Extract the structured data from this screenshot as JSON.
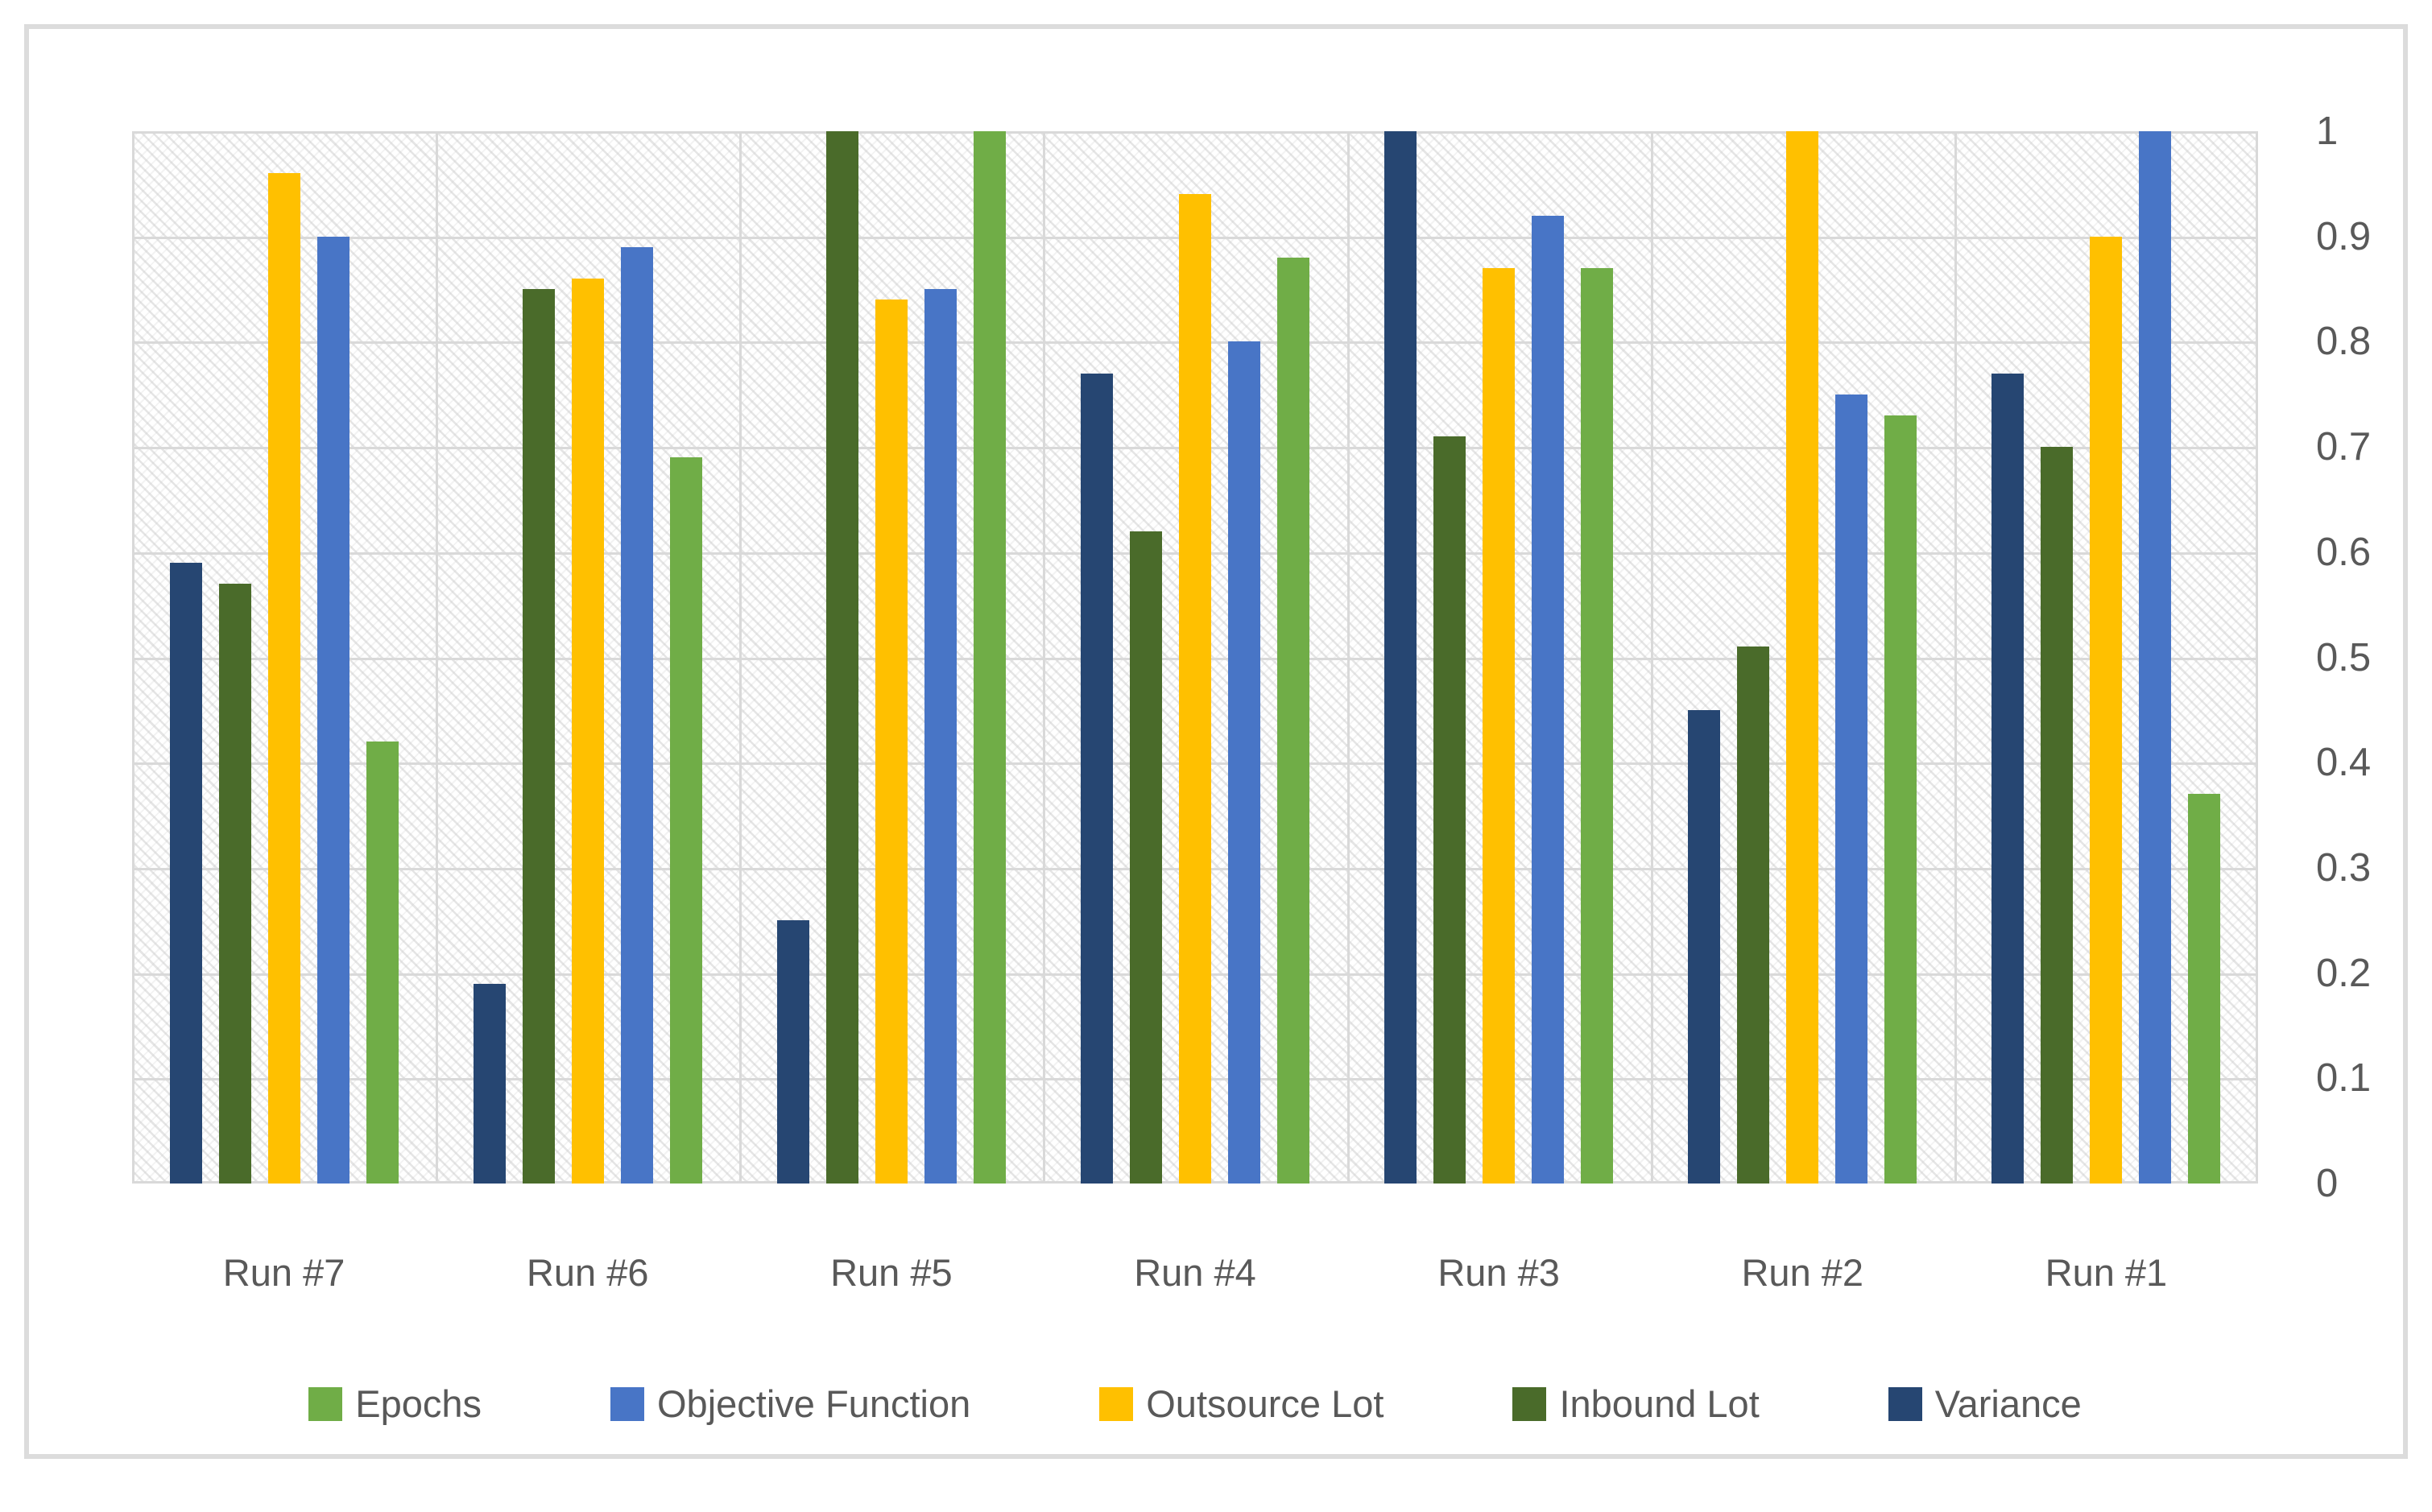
{
  "chart_data": {
    "type": "bar",
    "title": "",
    "xlabel": "",
    "ylabel": "",
    "categories": [
      "Run #7",
      "Run #6",
      "Run #5",
      "Run #4",
      "Run #3",
      "Run #2",
      "Run #1"
    ],
    "series": [
      {
        "name": "Variance",
        "color": "#264672",
        "values": [
          0.59,
          0.19,
          0.25,
          0.77,
          1.0,
          0.45,
          0.77
        ]
      },
      {
        "name": "Inbound Lot",
        "color": "#4a6b2a",
        "values": [
          0.57,
          0.85,
          1.0,
          0.62,
          0.71,
          0.51,
          0.7
        ]
      },
      {
        "name": "Outsource Lot",
        "color": "#ffc000",
        "values": [
          0.96,
          0.86,
          0.84,
          0.94,
          0.87,
          1.0,
          0.9
        ]
      },
      {
        "name": "Objective Function",
        "color": "#4875c6",
        "values": [
          0.9,
          0.89,
          0.85,
          0.8,
          0.92,
          0.75,
          1.0
        ]
      },
      {
        "name": "Epochs",
        "color": "#70ad47",
        "values": [
          0.42,
          0.69,
          1.0,
          0.88,
          0.87,
          0.73,
          0.37
        ]
      }
    ],
    "legend_order": [
      "Epochs",
      "Objective Function",
      "Outsource Lot",
      "Inbound Lot",
      "Variance"
    ],
    "legend_position": "bottom",
    "y_tick_labels": [
      "1",
      "0.9",
      "0.8",
      "0.7",
      "0.6",
      "0.5",
      "0.4",
      "0.3",
      "0.2",
      "0.1",
      "0"
    ],
    "ylim": [
      0,
      1
    ],
    "grid": true,
    "colors": {
      "text": "#595959",
      "gridline": "#d9d9d9",
      "frame_border": "#dcdcdc",
      "background": "#ffffff"
    }
  }
}
